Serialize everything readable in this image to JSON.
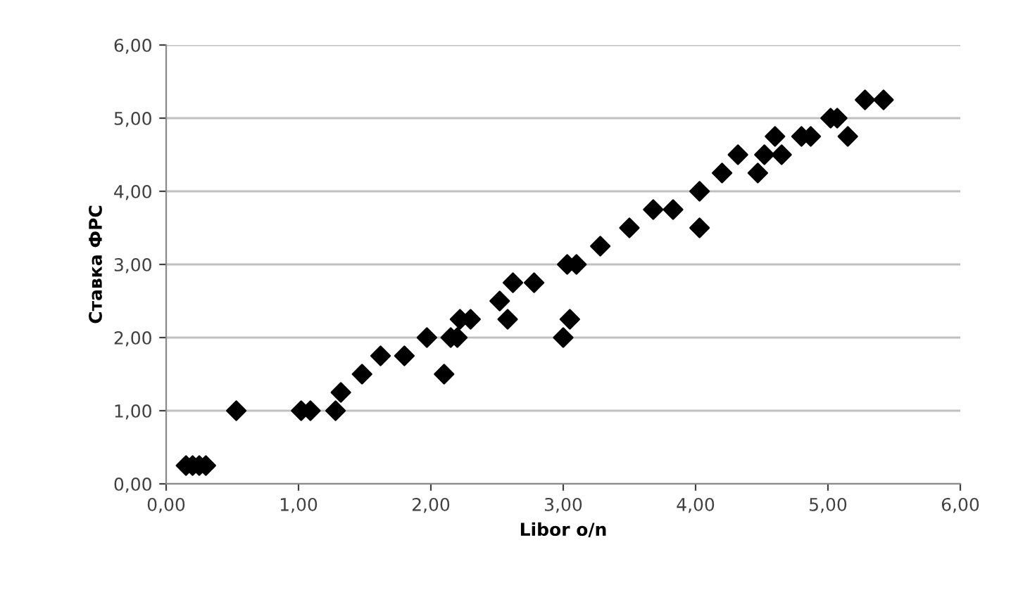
{
  "chart_data": {
    "type": "scatter",
    "xlabel": "Libor o/n",
    "ylabel": "Ставка ФРС",
    "marker": "diamond",
    "grid": "y",
    "xlim": [
      0,
      6
    ],
    "ylim": [
      0,
      6
    ],
    "xticks": [
      {
        "value": 0,
        "label": "0,00"
      },
      {
        "value": 1,
        "label": "1,00"
      },
      {
        "value": 2,
        "label": "2,00"
      },
      {
        "value": 3,
        "label": "3,00"
      },
      {
        "value": 4,
        "label": "4,00"
      },
      {
        "value": 5,
        "label": "5,00"
      },
      {
        "value": 6,
        "label": "6,00"
      }
    ],
    "yticks": [
      {
        "value": 0,
        "label": "0,00"
      },
      {
        "value": 1,
        "label": "1,00"
      },
      {
        "value": 2,
        "label": "2,00"
      },
      {
        "value": 3,
        "label": "3,00"
      },
      {
        "value": 4,
        "label": "4,00"
      },
      {
        "value": 5,
        "label": "5,00"
      },
      {
        "value": 6,
        "label": "6,00"
      }
    ],
    "series": [
      {
        "color": "#000000",
        "x": [
          0.15,
          0.2,
          0.25,
          0.3,
          0.53,
          1.02,
          1.09,
          1.28,
          1.32,
          1.48,
          1.62,
          1.8,
          1.97,
          2.1,
          2.15,
          2.2,
          2.22,
          2.3,
          2.52,
          2.58,
          2.62,
          2.78,
          3.0,
          3.05,
          3.03,
          3.1,
          3.28,
          3.5,
          3.68,
          3.83,
          4.03,
          4.03,
          4.2,
          4.32,
          4.47,
          4.52,
          4.6,
          4.65,
          4.8,
          4.87,
          5.02,
          5.07,
          5.15,
          5.28,
          5.42
        ],
        "values": [
          0.25,
          0.25,
          0.25,
          0.25,
          1.0,
          1.0,
          1.0,
          1.0,
          1.25,
          1.5,
          1.75,
          1.75,
          2.0,
          1.5,
          2.0,
          2.0,
          2.25,
          2.25,
          2.5,
          2.25,
          2.75,
          2.75,
          2.0,
          2.25,
          3.0,
          3.0,
          3.25,
          3.5,
          3.75,
          3.75,
          4.0,
          3.5,
          4.25,
          4.5,
          4.25,
          4.5,
          4.75,
          4.5,
          4.75,
          4.75,
          5.0,
          5.0,
          4.75,
          5.25,
          5.25
        ]
      }
    ]
  }
}
